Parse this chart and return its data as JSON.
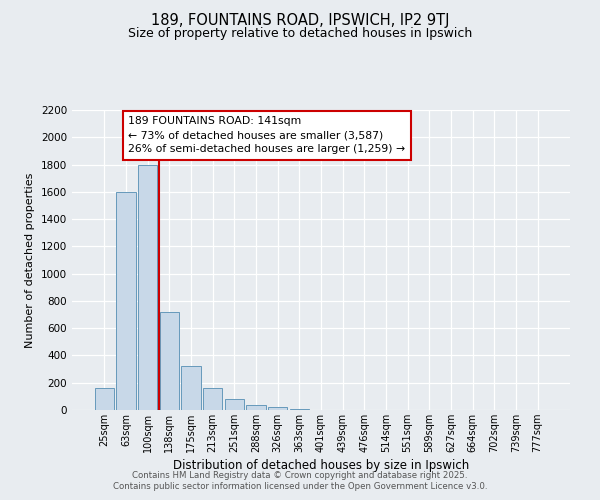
{
  "title": "189, FOUNTAINS ROAD, IPSWICH, IP2 9TJ",
  "subtitle": "Size of property relative to detached houses in Ipswich",
  "xlabel": "Distribution of detached houses by size in Ipswich",
  "ylabel": "Number of detached properties",
  "bar_labels": [
    "25sqm",
    "63sqm",
    "100sqm",
    "138sqm",
    "175sqm",
    "213sqm",
    "251sqm",
    "288sqm",
    "326sqm",
    "363sqm",
    "401sqm",
    "439sqm",
    "476sqm",
    "514sqm",
    "551sqm",
    "589sqm",
    "627sqm",
    "664sqm",
    "702sqm",
    "739sqm",
    "777sqm"
  ],
  "bar_values": [
    160,
    1600,
    1800,
    720,
    320,
    160,
    80,
    35,
    20,
    10,
    0,
    0,
    0,
    0,
    0,
    0,
    0,
    0,
    0,
    0,
    0
  ],
  "bar_color": "#c8d8e8",
  "bar_edgecolor": "#6699bb",
  "vline_index": 3,
  "vline_color": "#cc0000",
  "annotation_title": "189 FOUNTAINS ROAD: 141sqm",
  "annotation_line2": "← 73% of detached houses are smaller (3,587)",
  "annotation_line3": "26% of semi-detached houses are larger (1,259) →",
  "annotation_box_facecolor": "#ffffff",
  "annotation_box_edgecolor": "#cc0000",
  "ylim": [
    0,
    2200
  ],
  "yticks": [
    0,
    200,
    400,
    600,
    800,
    1000,
    1200,
    1400,
    1600,
    1800,
    2000,
    2200
  ],
  "background_color": "#e8ecf0",
  "grid_color": "#ffffff",
  "footer_line1": "Contains HM Land Registry data © Crown copyright and database right 2025.",
  "footer_line2": "Contains public sector information licensed under the Open Government Licence v3.0."
}
